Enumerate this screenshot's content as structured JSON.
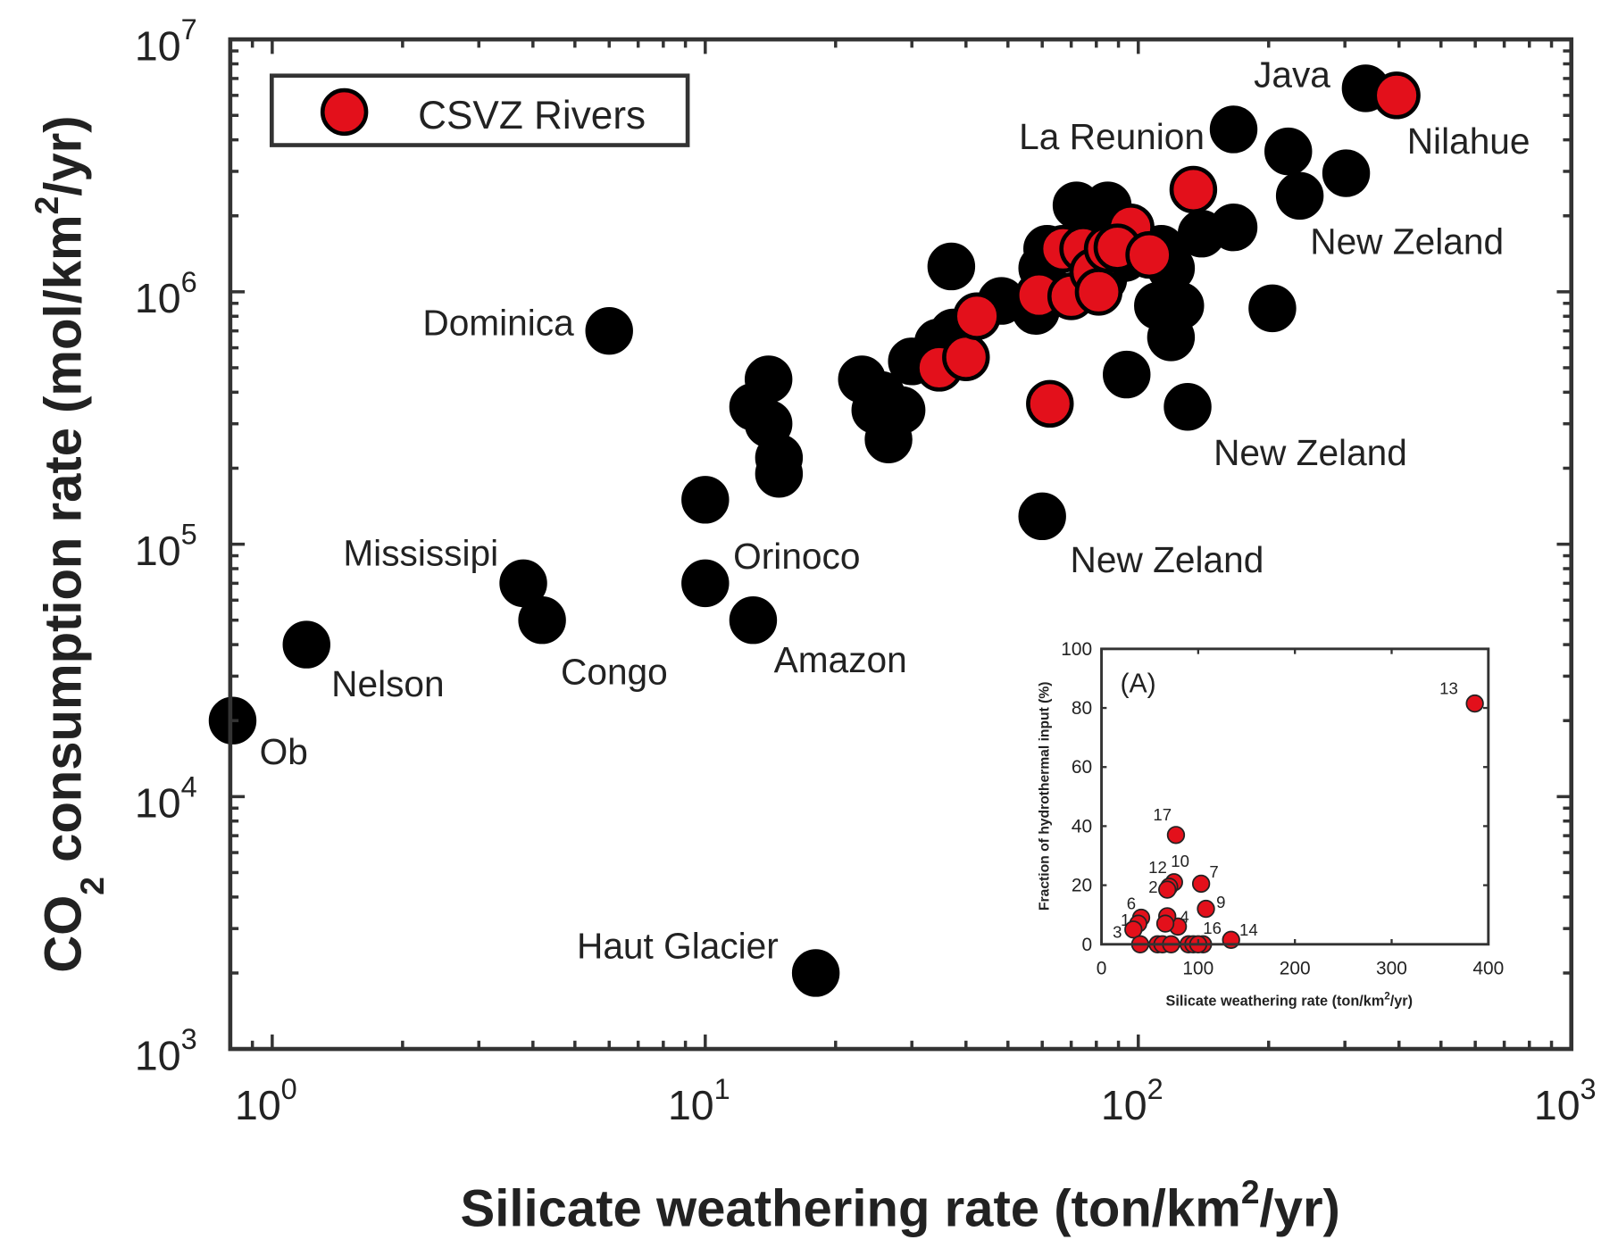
{
  "chart_data": [
    {
      "type": "scatter",
      "xlabel": "Silicate weathering rate (ton/km²/yr)",
      "xlabel_parts": {
        "main": "Silicate weathering rate (ton/km",
        "sup": "2",
        "tail": "/yr)"
      },
      "ylabel_parts": {
        "main": "CO",
        "sub": "2",
        "mid": " consumption rate (mol/km",
        "sup": "2",
        "tail": "/yr)"
      },
      "xscale": "log",
      "yscale": "log",
      "xlim": [
        0.8,
        1000
      ],
      "ylim": [
        1000,
        10000000
      ],
      "xticks": [
        {
          "base": "10",
          "exp": "0",
          "value": 1
        },
        {
          "base": "10",
          "exp": "1",
          "value": 10
        },
        {
          "base": "10",
          "exp": "2",
          "value": 100
        },
        {
          "base": "10",
          "exp": "3",
          "value": 1000
        }
      ],
      "yticks": [
        {
          "base": "10",
          "exp": "3",
          "value": 1000
        },
        {
          "base": "10",
          "exp": "4",
          "value": 10000
        },
        {
          "base": "10",
          "exp": "5",
          "value": 100000
        },
        {
          "base": "10",
          "exp": "6",
          "value": 1000000
        },
        {
          "base": "10",
          "exp": "7",
          "value": 10000000
        }
      ],
      "grid": false,
      "legend": {
        "placement": "top-left",
        "entries": [
          "CSVZ Rivers"
        ]
      },
      "colors": {
        "world_rivers": "#000000",
        "csvz": "#e3101b"
      },
      "series": [
        {
          "color": "#000000",
          "points": [
            [
              0.81,
              20000
            ],
            [
              1.2,
              40000
            ],
            [
              3.8,
              70000
            ],
            [
              4.2,
              50000
            ],
            [
              6.0,
              700000
            ],
            [
              10,
              150000
            ],
            [
              10,
              70000
            ],
            [
              12.9,
              50000
            ],
            [
              18,
              2000
            ],
            [
              14,
              450000
            ],
            [
              12.9,
              350000
            ],
            [
              14,
              300000
            ],
            [
              14.8,
              220000
            ],
            [
              14.8,
              190000
            ],
            [
              23,
              450000
            ],
            [
              25.5,
              390000
            ],
            [
              24.7,
              340000
            ],
            [
              26.5,
              260000
            ],
            [
              28.4,
              340000
            ],
            [
              30,
              530000
            ],
            [
              37,
              1260000
            ],
            [
              34.5,
              630000
            ],
            [
              37.4,
              690000
            ],
            [
              48.3,
              920000
            ],
            [
              58,
              840000
            ],
            [
              60,
              1240000
            ],
            [
              61.6,
              1480000
            ],
            [
              63,
              1000000
            ],
            [
              72,
              2200000
            ],
            [
              81,
              1870000
            ],
            [
              85,
              2200000
            ],
            [
              83,
              1120000
            ],
            [
              93,
              1360000
            ],
            [
              113,
              1480000
            ],
            [
              119,
              1240000
            ],
            [
              111,
              880000
            ],
            [
              125,
              880000
            ],
            [
              119,
              660000
            ],
            [
              94,
              470000
            ],
            [
              130,
              350000
            ],
            [
              140,
              1700000
            ],
            [
              166,
              1800000
            ],
            [
              166,
              4400000
            ],
            [
              222,
              3600000
            ],
            [
              236,
              2400000
            ],
            [
              302,
              2950000
            ],
            [
              335,
              6400000
            ],
            [
              204,
              860000
            ],
            [
              60,
              129000
            ]
          ]
        },
        {
          "name": "CSVZ Rivers",
          "color": "#e3101b",
          "points": [
            [
              395,
              6000000
            ],
            [
              134,
              2540000
            ],
            [
              62.5,
              360000
            ],
            [
              34.7,
              500000
            ],
            [
              40,
              550000
            ],
            [
              42.4,
              800000
            ],
            [
              59,
              970000
            ],
            [
              70,
              960000
            ],
            [
              67,
              1480000
            ],
            [
              74.6,
              1480000
            ],
            [
              78.7,
              1200000
            ],
            [
              85,
              1480000
            ],
            [
              96,
              1800000
            ],
            [
              89.5,
              1500000
            ],
            [
              106,
              1400000
            ],
            [
              81,
              1000000
            ]
          ]
        }
      ],
      "annotations": [
        {
          "text": "Ob",
          "x": 0.81,
          "y": 20000
        },
        {
          "text": "Nelson",
          "x": 1.2,
          "y": 40000
        },
        {
          "text": "Mississipi",
          "x": 3.8,
          "y": 70000
        },
        {
          "text": "Congo",
          "x": 4.2,
          "y": 50000
        },
        {
          "text": "Dominica",
          "x": 6.0,
          "y": 700000
        },
        {
          "text": "Orinoco",
          "x": 10,
          "y": 70000
        },
        {
          "text": "Amazon",
          "x": 12.9,
          "y": 50000
        },
        {
          "text": "Haut Glacier",
          "x": 18,
          "y": 2000
        },
        {
          "text": "New Zeland",
          "x": 60,
          "y": 129000
        },
        {
          "text": "New Zeland",
          "x": 130,
          "y": 350000
        },
        {
          "text": "New Zeland",
          "x": 236,
          "y": 2400000
        },
        {
          "text": "La Reunion",
          "x": 166,
          "y": 4400000
        },
        {
          "text": "Java",
          "x": 335,
          "y": 6400000
        },
        {
          "text": "Nilahue",
          "x": 395,
          "y": 6000000
        }
      ]
    },
    {
      "type": "scatter",
      "panel_label": "(A)",
      "xlabel_parts": {
        "main": "Silicate weathering rate (ton/km",
        "sup": "2",
        "tail": "/yr)"
      },
      "ylabel": "Fraction of hydrothermal input (%)",
      "xlim": [
        0,
        400
      ],
      "ylim": [
        0,
        100
      ],
      "xticks": [
        "0",
        "100",
        "200",
        "300",
        "400"
      ],
      "yticks": [
        "0",
        "20",
        "40",
        "60",
        "80",
        "100"
      ],
      "grid": false,
      "color": "#e3101b",
      "points": [
        {
          "x": 386,
          "y": 81.5,
          "label": "13"
        },
        {
          "x": 77,
          "y": 37,
          "label": "17"
        },
        {
          "x": 75,
          "y": 21,
          "label": "10"
        },
        {
          "x": 70,
          "y": 19.5,
          "label": "12"
        },
        {
          "x": 68,
          "y": 18.5,
          "label": "2"
        },
        {
          "x": 103,
          "y": 20.5,
          "label": "7"
        },
        {
          "x": 108,
          "y": 12,
          "label": "9"
        },
        {
          "x": 41,
          "y": 9,
          "label": "6"
        },
        {
          "x": 38,
          "y": 7,
          "label": "1"
        },
        {
          "x": 33,
          "y": 5,
          "label": "3"
        },
        {
          "x": 79,
          "y": 6,
          "label": "4"
        },
        {
          "x": 68,
          "y": 9.5,
          "label": ""
        },
        {
          "x": 66,
          "y": 7,
          "label": ""
        },
        {
          "x": 105,
          "y": 0,
          "label": "16"
        },
        {
          "x": 134,
          "y": 1.5,
          "label": "14"
        },
        {
          "x": 40,
          "y": 0,
          "label": ""
        },
        {
          "x": 58,
          "y": 0,
          "label": ""
        },
        {
          "x": 63,
          "y": 0,
          "label": ""
        },
        {
          "x": 72,
          "y": 0,
          "label": ""
        },
        {
          "x": 90,
          "y": 0,
          "label": ""
        },
        {
          "x": 95,
          "y": 0,
          "label": ""
        },
        {
          "x": 100,
          "y": 0,
          "label": ""
        }
      ]
    }
  ]
}
